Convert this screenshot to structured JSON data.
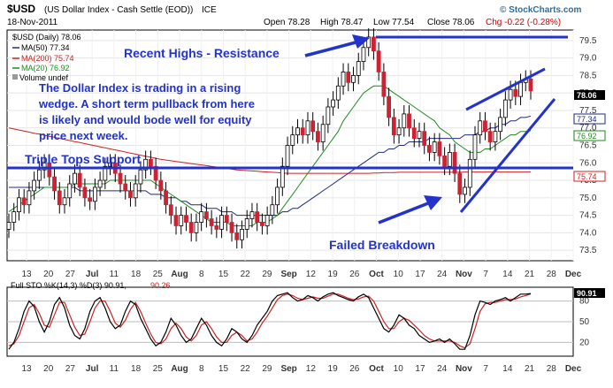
{
  "header": {
    "symbol": "$USD",
    "name": "(US Dollar Index - Cash Settle (EOD))",
    "exchange": "ICE",
    "date": "18-Nov-2011",
    "brand": "© StockCharts.com",
    "open": "Open 78.28",
    "high": "High 78.47",
    "low": "Low 77.54",
    "close": "Close 78.06",
    "chg": "Chg -0.22 (-0.28%)",
    "chg_color": "#cc0000"
  },
  "legend": [
    {
      "text": "$USD (Daily) 78.06",
      "color": "#000000"
    },
    {
      "text": "MA(50) 77.34",
      "color": "#1f2a80"
    },
    {
      "text": "MA(200) 75.74",
      "color": "#cc2222"
    },
    {
      "text": "MA(20) 76.92",
      "color": "#1f8a1f"
    },
    {
      "text": "Volume undef",
      "color": "#000000"
    }
  ],
  "annotations": {
    "resistance": "Recent Highs - Resistance",
    "wedge_note": "The Dollar Index is trading in a rising wedge. A short term pullback from here is likely and would bode well for equity price next week.",
    "wedge_lines": [
      "The Dollar Index is trading in a rising",
      "wedge. A short term pullback from here",
      "is likely and would bode well for equity",
      "price next week."
    ],
    "support": "Triple Tops Support",
    "breakdown": "Failed Breakdown",
    "color": "#2233cc"
  },
  "price_badges": {
    "close": "78.06",
    "ma50": "77.34",
    "ma20": "76.92",
    "ma200": "75.74"
  },
  "stoch": {
    "label": "Full STO %K(14,3) %D(3) 90.91,",
    "label_d": "90.26",
    "badge": "90.91",
    "yticks": [
      "80",
      "50",
      "20"
    ]
  },
  "x_labels": [
    "13",
    "20",
    "27",
    "Jul",
    "11",
    "18",
    "25",
    "Aug",
    "8",
    "15",
    "22",
    "29",
    "Sep",
    "12",
    "19",
    "26",
    "Oct",
    "10",
    "17",
    "24",
    "Nov",
    "7",
    "14",
    "21",
    "28",
    "Dec"
  ],
  "chart_data": {
    "type": "line",
    "title": "$USD (US Dollar Index - Cash Settle (EOD)) ICE",
    "y_ticks": [
      "79.5",
      "79.0",
      "78.5",
      "78.0",
      "77.5",
      "77.0",
      "76.5",
      "76.0",
      "75.5",
      "75.0",
      "74.5",
      "74.0",
      "73.5"
    ],
    "ylim": [
      73.2,
      79.8
    ],
    "resistance_level": 79.7,
    "support_level": 75.95,
    "close_series": [
      74.3,
      74.6,
      75.0,
      74.8,
      75.2,
      75.5,
      75.8,
      76.0,
      75.6,
      75.2,
      74.8,
      75.0,
      75.4,
      75.7,
      75.3,
      75.0,
      74.9,
      75.3,
      75.5,
      75.9,
      76.0,
      75.7,
      75.4,
      75.2,
      75.0,
      75.4,
      75.8,
      76.1,
      75.9,
      75.5,
      75.2,
      74.8,
      74.5,
      74.2,
      74.5,
      74.3,
      74.0,
      74.3,
      74.6,
      74.4,
      74.2,
      74.1,
      74.5,
      74.3,
      74.0,
      73.8,
      74.1,
      74.4,
      74.6,
      74.3,
      74.2,
      74.5,
      74.8,
      75.3,
      75.9,
      76.5,
      76.8,
      77.0,
      76.8,
      77.2,
      76.9,
      76.6,
      77.1,
      77.6,
      77.8,
      78.2,
      78.6,
      78.3,
      78.5,
      78.9,
      79.3,
      79.6,
      79.2,
      78.6,
      77.9,
      77.3,
      76.8,
      77.0,
      77.4,
      77.0,
      76.7,
      76.9,
      76.5,
      76.3,
      76.6,
      76.2,
      75.9,
      76.3,
      75.7,
      75.1,
      75.3,
      76.1,
      76.8,
      77.2,
      76.9,
      76.6,
      76.9,
      77.3,
      77.8,
      78.1,
      77.9,
      78.3,
      78.4,
      78.06
    ],
    "ma20": [
      74.6,
      74.7,
      74.8,
      74.9,
      75.0,
      75.1,
      75.2,
      75.3,
      75.3,
      75.3,
      75.3,
      75.3,
      75.3,
      75.4,
      75.4,
      75.4,
      75.4,
      75.4,
      75.4,
      75.4,
      75.5,
      75.5,
      75.5,
      75.5,
      75.5,
      75.5,
      75.5,
      75.5,
      75.5,
      75.4,
      75.3,
      75.2,
      75.1,
      75.0,
      74.9,
      74.8,
      74.7,
      74.6,
      74.5,
      74.4,
      74.3,
      74.3,
      74.3,
      74.3,
      74.2,
      74.2,
      74.2,
      74.2,
      74.2,
      74.3,
      74.3,
      74.3,
      74.4,
      74.5,
      74.7,
      74.9,
      75.1,
      75.3,
      75.5,
      75.7,
      75.9,
      76.1,
      76.3,
      76.5,
      76.7,
      76.9,
      77.2,
      77.4,
      77.6,
      77.8,
      78.0,
      78.1,
      78.2,
      78.2,
      78.2,
      78.1,
      78.0,
      77.9,
      77.8,
      77.7,
      77.6,
      77.5,
      77.4,
      77.3,
      77.2,
      77.0,
      76.9,
      76.8,
      76.6,
      76.5,
      76.4,
      76.3,
      76.3,
      76.3,
      76.4,
      76.4,
      76.5,
      76.6,
      76.7,
      76.8,
      76.8,
      76.9,
      76.9,
      76.92
    ],
    "ma50": [
      75.3,
      75.3,
      75.3,
      75.3,
      75.3,
      75.3,
      75.3,
      75.3,
      75.3,
      75.3,
      75.3,
      75.3,
      75.3,
      75.3,
      75.2,
      75.2,
      75.2,
      75.2,
      75.2,
      75.2,
      75.2,
      75.2,
      75.2,
      75.2,
      75.2,
      75.2,
      75.2,
      75.2,
      75.1,
      75.1,
      75.1,
      75.0,
      75.0,
      75.0,
      74.9,
      74.9,
      74.8,
      74.8,
      74.8,
      74.7,
      74.7,
      74.7,
      74.6,
      74.6,
      74.6,
      74.5,
      74.5,
      74.5,
      74.5,
      74.5,
      74.5,
      74.5,
      74.5,
      74.5,
      74.6,
      74.6,
      74.7,
      74.7,
      74.8,
      74.9,
      75.0,
      75.1,
      75.2,
      75.3,
      75.4,
      75.5,
      75.6,
      75.7,
      75.8,
      75.9,
      76.0,
      76.1,
      76.2,
      76.3,
      76.3,
      76.4,
      76.4,
      76.5,
      76.5,
      76.6,
      76.6,
      76.6,
      76.6,
      76.7,
      76.7,
      76.7,
      76.7,
      76.7,
      76.7,
      76.7,
      76.8,
      76.8,
      76.8,
      76.9,
      76.9,
      77.0,
      77.0,
      77.1,
      77.1,
      77.2,
      77.2,
      77.3,
      77.3,
      77.34
    ],
    "ma200": [
      77.0,
      76.97,
      76.94,
      76.91,
      76.88,
      76.85,
      76.82,
      76.79,
      76.76,
      76.73,
      76.7,
      76.67,
      76.64,
      76.61,
      76.58,
      76.55,
      76.52,
      76.49,
      76.46,
      76.43,
      76.4,
      76.37,
      76.34,
      76.31,
      76.28,
      76.25,
      76.22,
      76.19,
      76.16,
      76.13,
      76.1,
      76.08,
      76.06,
      76.04,
      76.02,
      76.0,
      75.98,
      75.96,
      75.94,
      75.92,
      75.9,
      75.88,
      75.86,
      75.84,
      75.82,
      75.8,
      75.79,
      75.78,
      75.77,
      75.76,
      75.75,
      75.74,
      75.73,
      75.72,
      75.71,
      75.7,
      75.7,
      75.7,
      75.7,
      75.7,
      75.7,
      75.7,
      75.7,
      75.7,
      75.7,
      75.7,
      75.7,
      75.7,
      75.7,
      75.7,
      75.7,
      75.7,
      75.71,
      75.71,
      75.72,
      75.72,
      75.72,
      75.73,
      75.73,
      75.73,
      75.73,
      75.73,
      75.73,
      75.73,
      75.73,
      75.73,
      75.73,
      75.73,
      75.73,
      75.73,
      75.74,
      75.74,
      75.74,
      75.74,
      75.74,
      75.74,
      75.74,
      75.74,
      75.74,
      75.74,
      75.74,
      75.74,
      75.74,
      75.74
    ],
    "stoch_k": [
      10,
      20,
      40,
      65,
      80,
      72,
      50,
      35,
      50,
      75,
      85,
      70,
      45,
      30,
      25,
      40,
      65,
      80,
      85,
      70,
      50,
      40,
      45,
      65,
      80,
      75,
      55,
      40,
      25,
      15,
      20,
      35,
      55,
      45,
      30,
      20,
      25,
      40,
      55,
      45,
      30,
      20,
      15,
      25,
      40,
      35,
      25,
      20,
      30,
      45,
      55,
      65,
      80,
      88,
      90,
      92,
      85,
      80,
      82,
      88,
      85,
      80,
      86,
      90,
      92,
      88,
      85,
      82,
      80,
      86,
      90,
      85,
      70,
      55,
      40,
      35,
      45,
      60,
      55,
      45,
      40,
      30,
      25,
      20,
      22,
      25,
      20,
      25,
      18,
      10,
      10,
      30,
      60,
      80,
      78,
      75,
      80,
      82,
      85,
      80,
      85,
      90,
      90,
      90.91
    ],
    "stoch_d": [
      15,
      18,
      30,
      50,
      70,
      75,
      62,
      45,
      42,
      60,
      78,
      78,
      60,
      42,
      30,
      32,
      50,
      70,
      80,
      80,
      65,
      48,
      42,
      52,
      68,
      78,
      65,
      48,
      32,
      20,
      18,
      25,
      40,
      48,
      40,
      28,
      22,
      30,
      45,
      50,
      40,
      28,
      20,
      20,
      30,
      35,
      30,
      22,
      25,
      35,
      48,
      58,
      70,
      82,
      88,
      90,
      88,
      84,
      82,
      84,
      86,
      84,
      84,
      87,
      90,
      90,
      87,
      84,
      82,
      83,
      86,
      87,
      80,
      65,
      50,
      40,
      40,
      50,
      55,
      52,
      45,
      38,
      30,
      25,
      22,
      22,
      22,
      22,
      20,
      15,
      12,
      18,
      40,
      65,
      76,
      78,
      78,
      80,
      82,
      82,
      83,
      86,
      88,
      90.26
    ]
  }
}
